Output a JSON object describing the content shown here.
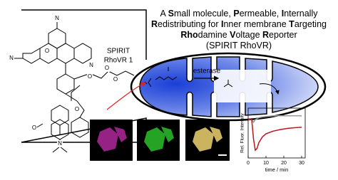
{
  "title_lines": [
    [
      {
        "text": "A "
      },
      {
        "text": "S",
        "bold": true
      },
      {
        "text": "mall molecule, "
      },
      {
        "text": "P",
        "bold": true
      },
      {
        "text": "ermeable, "
      },
      {
        "text": "I",
        "bold": true
      },
      {
        "text": "nternally"
      }
    ],
    [
      {
        "text": "R",
        "bold": true
      },
      {
        "text": "edistributing for "
      },
      {
        "text": "I",
        "bold": true
      },
      {
        "text": "nner membrane "
      },
      {
        "text": "T",
        "bold": true
      },
      {
        "text": "argeting"
      }
    ],
    [
      {
        "text": "Rho",
        "bold": true
      },
      {
        "text": "damine "
      },
      {
        "text": "V",
        "bold": true
      },
      {
        "text": "oltage "
      },
      {
        "text": "R",
        "bold": true
      },
      {
        "text": "eporter"
      }
    ],
    [
      {
        "text": "(SPIRIT RhoVR)"
      }
    ]
  ],
  "compound_name": [
    "SPIRIT",
    "RhoVR 1"
  ],
  "enzyme": "esterase",
  "atoms": [
    "N",
    "N",
    "N",
    "O",
    "O",
    "O",
    "O",
    "O",
    "O",
    "N"
  ],
  "plot": {
    "type": "line",
    "xlabel": "time / min",
    "ylabel": "Rel. Fluor. Intensity",
    "xlim": [
      0,
      32
    ],
    "ylim": [
      0,
      1.3
    ],
    "xticks": [
      0,
      10,
      20,
      30
    ],
    "series": [
      {
        "color": "#999999",
        "x": [
          0,
          2,
          3,
          4,
          6,
          8,
          10,
          14,
          18,
          22,
          26,
          30
        ],
        "values": [
          1.0,
          1.0,
          0.93,
          1.0,
          1.05,
          1.07,
          1.08,
          1.1,
          1.1,
          1.1,
          1.1,
          1.1
        ]
      },
      {
        "color": "#c0141c",
        "x": [
          0,
          2,
          3,
          4,
          5,
          6,
          8,
          10,
          14,
          18,
          22,
          26,
          30
        ],
        "values": [
          1.0,
          1.0,
          0.5,
          0.2,
          0.25,
          0.4,
          0.55,
          0.63,
          0.7,
          0.74,
          0.77,
          0.79,
          0.8
        ]
      }
    ]
  }
}
